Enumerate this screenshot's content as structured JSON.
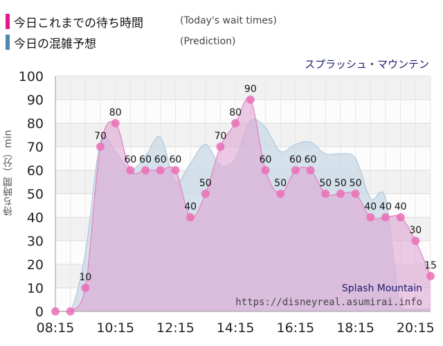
{
  "legend": {
    "actual_jp": "今日これまでの待ち時間",
    "actual_en": "(Today's wait times)",
    "prediction_jp": "今日の混雑予想",
    "prediction_en": "(Prediction)"
  },
  "attraction_jp": "スプラッシュ・マウンテン",
  "attraction_en": "Splash Mountain",
  "site": "https://disneyreal.asumirai.info",
  "colors": {
    "actual": "#e8178b",
    "actual_fill": "#e0a6d6",
    "prediction": "#4f87b3",
    "prediction_fill": "#c8d8e6",
    "title_color": "#1a1a6b"
  },
  "chart_data": {
    "type": "area",
    "ylabel": "待ち時間（分）min",
    "ylim": [
      0,
      100
    ],
    "yticks": [
      "0",
      "10",
      "20",
      "30",
      "40",
      "50",
      "60",
      "70",
      "80",
      "90",
      "100"
    ],
    "xticks": [
      "08:15",
      "10:15",
      "12:15",
      "14:15",
      "16:15",
      "18:15",
      "20:15"
    ],
    "xlim": [
      "08:15",
      "20:45"
    ],
    "grid": true,
    "series": [
      {
        "name": "今日これまでの待ち時間",
        "x": [
          "08:15",
          "08:45",
          "09:15",
          "09:45",
          "10:15",
          "10:45",
          "11:15",
          "11:45",
          "12:15",
          "12:45",
          "13:15",
          "13:45",
          "14:15",
          "14:45",
          "15:15",
          "15:45",
          "16:15",
          "16:45",
          "17:15",
          "17:45",
          "18:15",
          "18:45",
          "19:15",
          "19:45",
          "20:15",
          "20:45"
        ],
        "values": [
          0,
          0,
          10,
          70,
          80,
          60,
          60,
          60,
          60,
          40,
          50,
          70,
          80,
          90,
          60,
          50,
          60,
          60,
          50,
          50,
          50,
          40,
          40,
          40,
          30,
          15
        ]
      },
      {
        "name": "今日の混雑予想",
        "x": [
          "08:15",
          "08:45",
          "09:15",
          "09:45",
          "10:15",
          "10:45",
          "11:15",
          "11:45",
          "12:15",
          "12:45",
          "13:15",
          "13:45",
          "14:15",
          "14:45",
          "15:15",
          "15:45",
          "16:15",
          "16:45",
          "17:15",
          "17:45",
          "18:15",
          "18:45",
          "19:15",
          "19:45",
          "20:15",
          "20:45"
        ],
        "values": [
          0,
          0,
          25,
          72,
          68,
          60,
          66,
          74,
          55,
          63,
          71,
          62,
          65,
          81,
          78,
          68,
          71,
          72,
          67,
          67,
          65,
          48,
          48,
          2,
          1,
          1
        ]
      }
    ]
  }
}
